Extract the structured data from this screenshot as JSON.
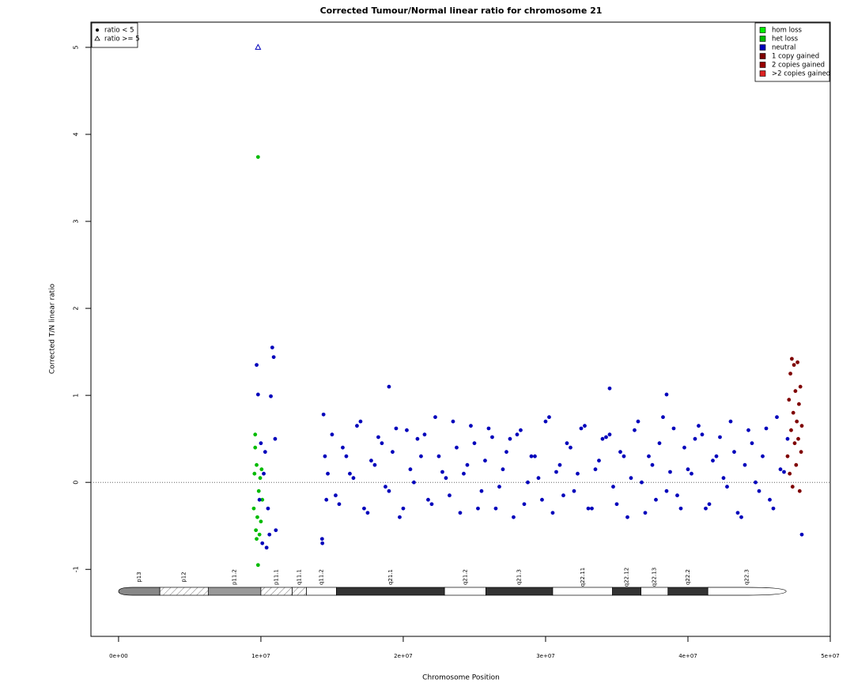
{
  "chart_data": {
    "type": "scatter",
    "title": "Corrected Tumour/Normal linear ratio for chromosome  21",
    "x_label": "Chromosome Position",
    "y_label": "Corrected T/N linear ratio",
    "xlim": [
      -1940000,
      50000000
    ],
    "ylim": [
      -1.77,
      5.29
    ],
    "xticks": [
      {
        "value": 0,
        "label": "0e+00"
      },
      {
        "value": 10000000,
        "label": "1e+07"
      },
      {
        "value": 20000000,
        "label": "2e+07"
      },
      {
        "value": 30000000,
        "label": "3e+07"
      },
      {
        "value": 40000000,
        "label": "4e+07"
      },
      {
        "value": 50000000,
        "label": "5e+07"
      }
    ],
    "yticks": [
      -1,
      0,
      1,
      2,
      3,
      4,
      5
    ],
    "reference_line": 0,
    "legend": "top-right",
    "shape_legend": {
      "position": "top-left",
      "labels": [
        "ratio < 5",
        "ratio >= 5"
      ]
    },
    "series": [
      {
        "name": "hom loss",
        "color": "#00ee00",
        "x": [],
        "values": []
      },
      {
        "name": "het loss",
        "color": "#00bb00",
        "x": [
          9500000,
          9550000,
          9600000,
          9650000,
          9700000,
          9750000,
          9800000,
          9800000,
          9850000,
          9900000,
          9950000,
          10000000,
          10050000,
          10100000,
          9600000,
          9700000
        ],
        "values": [
          -0.3,
          0.1,
          0.55,
          -0.55,
          0.2,
          -0.4,
          3.74,
          -0.95,
          -0.1,
          -0.6,
          0.05,
          -0.45,
          0.15,
          -0.2,
          0.4,
          -0.65
        ]
      },
      {
        "name": "neutral",
        "color": "#0000bb",
        "x": [
          9700000,
          9800000,
          10100000,
          10300000,
          10500000,
          10700000,
          10800000,
          10900000,
          11000000,
          11050000,
          10200000,
          10600000,
          9900000,
          10000000,
          10400000,
          14300000,
          14320000,
          14400000,
          14500000,
          14600000,
          14700000,
          15000000,
          15500000,
          16000000,
          16500000,
          17000000,
          17500000,
          18000000,
          18500000,
          19000000,
          19500000,
          20000000,
          20500000,
          21000000,
          21500000,
          22000000,
          22500000,
          23000000,
          23500000,
          24000000,
          24500000,
          25000000,
          25500000,
          26000000,
          26500000,
          27000000,
          27500000,
          28000000,
          28500000,
          29000000,
          29500000,
          30000000,
          30500000,
          31000000,
          31500000,
          32000000,
          32500000,
          33000000,
          33500000,
          34000000,
          34500000,
          35000000,
          35500000,
          36000000,
          36500000,
          37000000,
          37500000,
          38000000,
          38500000,
          39000000,
          39500000,
          40000000,
          40500000,
          41000000,
          41500000,
          42000000,
          42500000,
          43000000,
          43500000,
          44000000,
          44500000,
          45000000,
          45500000,
          46000000,
          46500000,
          47000000,
          15250000,
          15750000,
          16250000,
          16750000,
          17250000,
          17750000,
          18250000,
          18750000,
          19250000,
          19750000,
          20250000,
          20750000,
          21250000,
          21750000,
          22250000,
          22750000,
          23250000,
          23750000,
          24250000,
          24750000,
          25250000,
          25750000,
          26250000,
          26750000,
          27250000,
          27750000,
          28250000,
          28750000,
          29250000,
          29750000,
          30250000,
          30750000,
          31250000,
          31750000,
          32250000,
          32750000,
          33250000,
          33750000,
          34250000,
          34750000,
          35250000,
          35750000,
          36250000,
          36750000,
          37250000,
          37750000,
          38250000,
          38750000,
          39250000,
          39750000,
          40250000,
          40750000,
          41250000,
          41750000,
          42250000,
          42750000,
          43250000,
          43750000,
          44250000,
          44750000,
          45250000,
          45750000,
          46250000,
          46750000,
          19000000,
          34500000,
          38500000,
          48000000
        ],
        "values": [
          1.35,
          1.01,
          -0.7,
          0.35,
          -0.3,
          0.99,
          1.55,
          1.44,
          0.5,
          -0.55,
          0.1,
          -0.6,
          -0.2,
          0.45,
          -0.75,
          -0.65,
          -0.7,
          0.78,
          0.3,
          -0.2,
          0.1,
          0.55,
          -0.25,
          0.3,
          0.05,
          0.7,
          -0.35,
          0.2,
          0.45,
          -0.1,
          0.62,
          -0.3,
          0.15,
          0.5,
          0.55,
          -0.25,
          0.3,
          0.05,
          0.7,
          -0.35,
          0.2,
          0.45,
          -0.1,
          0.62,
          -0.3,
          0.15,
          0.5,
          0.55,
          -0.25,
          0.3,
          0.05,
          0.7,
          -0.35,
          0.2,
          0.45,
          -0.1,
          0.62,
          -0.3,
          0.15,
          0.5,
          0.55,
          -0.25,
          0.3,
          0.05,
          0.7,
          -0.35,
          0.2,
          0.45,
          -0.1,
          0.62,
          -0.3,
          0.15,
          0.5,
          0.55,
          -0.25,
          0.3,
          0.05,
          0.7,
          -0.35,
          0.2,
          0.45,
          -0.1,
          0.62,
          -0.3,
          0.15,
          0.5,
          -0.15,
          0.4,
          0.1,
          0.65,
          -0.3,
          0.25,
          0.52,
          -0.05,
          0.35,
          -0.4,
          0.6,
          0.0,
          0.3,
          -0.2,
          0.75,
          0.12,
          -0.15,
          0.4,
          0.1,
          0.65,
          -0.3,
          0.25,
          0.52,
          -0.05,
          0.35,
          -0.4,
          0.6,
          0.0,
          0.3,
          -0.2,
          0.75,
          0.12,
          -0.15,
          0.4,
          0.1,
          0.65,
          -0.3,
          0.25,
          0.52,
          -0.05,
          0.35,
          -0.4,
          0.6,
          0.0,
          0.3,
          -0.2,
          0.75,
          0.12,
          -0.15,
          0.4,
          0.1,
          0.65,
          -0.3,
          0.25,
          0.52,
          -0.05,
          0.35,
          -0.4,
          0.6,
          0.0,
          0.3,
          -0.2,
          0.75,
          0.12,
          1.1,
          1.08,
          1.01,
          -0.6
        ]
      },
      {
        "name": "1 copy gained",
        "color": "#7f0000",
        "x": [
          47000000,
          47100000,
          47150000,
          47200000,
          47250000,
          47300000,
          47350000,
          47400000,
          47450000,
          47500000,
          47550000,
          47600000,
          47650000,
          47700000,
          47750000,
          47800000,
          47850000,
          47900000,
          47950000,
          48000000
        ],
        "values": [
          0.3,
          0.95,
          0.1,
          1.25,
          0.6,
          1.42,
          -0.05,
          0.8,
          1.35,
          0.45,
          1.05,
          0.2,
          0.7,
          1.38,
          0.5,
          0.9,
          -0.1,
          1.1,
          0.35,
          0.65
        ]
      },
      {
        "name": "2 copies gained",
        "color": "#990000",
        "x": [],
        "values": []
      },
      {
        "name": ">2 copies gained",
        "color": "#dd2222",
        "x": [],
        "values": []
      }
    ],
    "capped_points": {
      "color": "#0000bb",
      "x": [
        9800000
      ],
      "values": [
        5
      ]
    },
    "bands": [
      {
        "label": "p13",
        "start": 0,
        "end": 2900000,
        "color": "#888888",
        "hatched": false
      },
      {
        "label": "p12",
        "start": 2900000,
        "end": 6300000,
        "color": "#ffffff",
        "hatched": true
      },
      {
        "label": "p11.2",
        "start": 6300000,
        "end": 10000000,
        "color": "#999999",
        "hatched": false
      },
      {
        "label": "p11.1",
        "start": 10000000,
        "end": 12200000,
        "color": "#ffffff",
        "hatched": true
      },
      {
        "label": "q11.1",
        "start": 12200000,
        "end": 13200000,
        "color": "#ffffff",
        "hatched": true
      },
      {
        "label": "q11.2",
        "start": 13200000,
        "end": 15300000,
        "color": "#ffffff",
        "hatched": false
      },
      {
        "label": "q21.1",
        "start": 15300000,
        "end": 22900000,
        "color": "#333333",
        "hatched": false
      },
      {
        "label": "q21.2",
        "start": 22900000,
        "end": 25800000,
        "color": "#ffffff",
        "hatched": false
      },
      {
        "label": "q21.3",
        "start": 25800000,
        "end": 30500000,
        "color": "#333333",
        "hatched": false
      },
      {
        "label": "q22.11",
        "start": 30500000,
        "end": 34700000,
        "color": "#ffffff",
        "hatched": false
      },
      {
        "label": "q22.12",
        "start": 34700000,
        "end": 36700000,
        "color": "#333333",
        "hatched": false
      },
      {
        "label": "q22.13",
        "start": 36700000,
        "end": 38600000,
        "color": "#ffffff",
        "hatched": false
      },
      {
        "label": "q22.2",
        "start": 38600000,
        "end": 41400000,
        "color": "#333333",
        "hatched": false
      },
      {
        "label": "q22.3",
        "start": 41400000,
        "end": 46900000,
        "color": "#ffffff",
        "hatched": false
      }
    ]
  }
}
